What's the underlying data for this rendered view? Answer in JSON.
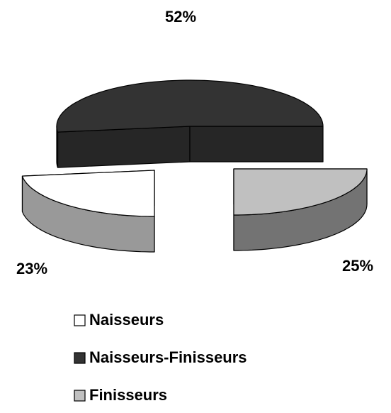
{
  "chart_data": {
    "type": "pie3d",
    "categories": [
      "Naisseurs",
      "Naisseurs-Finisseurs",
      "Finisseurs"
    ],
    "values": [
      23,
      52,
      25
    ],
    "value_labels": [
      "23%",
      "52%",
      "25%"
    ],
    "colors": [
      "#ffffff",
      "#333333",
      "#c0c0c0"
    ],
    "legend": "bottom"
  }
}
